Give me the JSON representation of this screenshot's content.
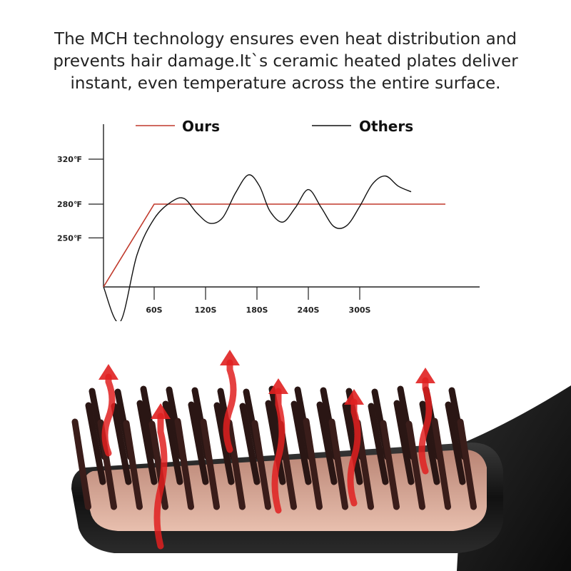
{
  "headline": {
    "line1": "The MCH technology ensures even heat distribution and",
    "line2": "prevents hair damage.It`s ceramic heated plates deliver",
    "line3": "instant, even temperature across the entire surface."
  },
  "chart_data": {
    "type": "line",
    "title": "",
    "xlabel": "",
    "ylabel": "",
    "x_ticks": [
      "60S",
      "120S",
      "180S",
      "240S",
      "300S"
    ],
    "y_ticks": [
      "320℉",
      "280℉",
      "250℉"
    ],
    "grid": false,
    "legend_position": "top",
    "series": [
      {
        "name": "Ours",
        "color": "#c0392b",
        "points": [
          [
            0,
            0
          ],
          [
            60,
            280
          ],
          [
            400,
            280
          ]
        ]
      },
      {
        "name": "Others",
        "color": "#111111",
        "points": [
          [
            0,
            0
          ],
          [
            20,
            175
          ],
          [
            40,
            235
          ],
          [
            60,
            267
          ],
          [
            80,
            282
          ],
          [
            95,
            285
          ],
          [
            110,
            272
          ],
          [
            125,
            263
          ],
          [
            140,
            268
          ],
          [
            155,
            290
          ],
          [
            170,
            306
          ],
          [
            183,
            296
          ],
          [
            195,
            274
          ],
          [
            210,
            264
          ],
          [
            225,
            277
          ],
          [
            240,
            293
          ],
          [
            255,
            277
          ],
          [
            270,
            260
          ],
          [
            285,
            261
          ],
          [
            300,
            278
          ],
          [
            315,
            298
          ],
          [
            330,
            305
          ],
          [
            345,
            296
          ],
          [
            360,
            291
          ]
        ]
      }
    ]
  },
  "product": {
    "description_icon": "hair-straightener-brush-icon",
    "heat_color": "#e02020",
    "plate_color": "#c98f80",
    "body_color": "#1a1a1a"
  }
}
